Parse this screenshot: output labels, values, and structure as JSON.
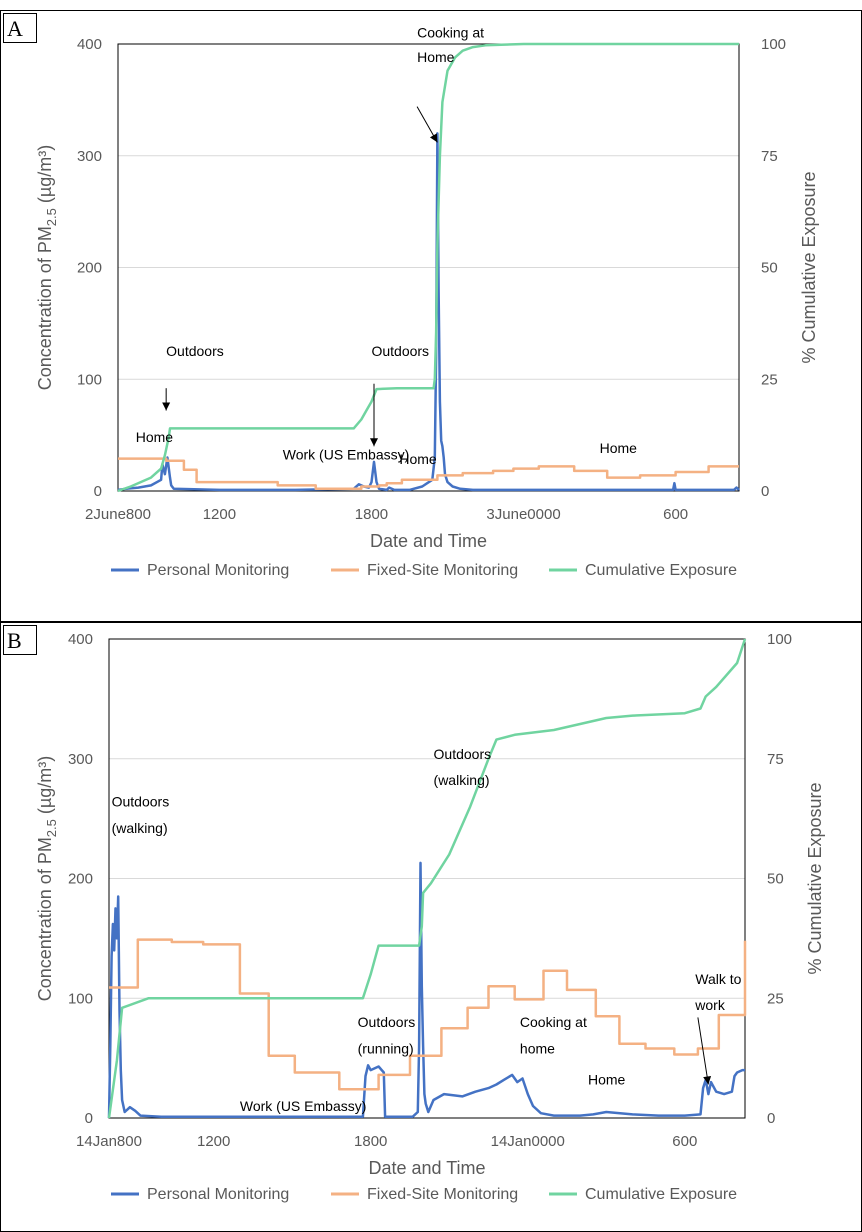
{
  "panels": [
    {
      "label": "A",
      "axes": {
        "xlabel": "Date and Time",
        "ylabel": "Concentration of PM2.5 (µg/m³)",
        "y2label": "% Cumulative Exposure",
        "ylim": [
          0,
          400
        ],
        "y2lim": [
          0,
          100
        ],
        "xlim": [
          8,
          32.5
        ],
        "yticks": [
          "0",
          "100",
          "200",
          "300",
          "400"
        ],
        "y2ticks": [
          "0",
          "25",
          "50",
          "75",
          "100"
        ],
        "xticks": [
          {
            "x": 8,
            "label": "2June800"
          },
          {
            "x": 12,
            "label": "1200"
          },
          {
            "x": 18,
            "label": "1800"
          },
          {
            "x": 24,
            "label": "3June0000"
          },
          {
            "x": 30,
            "label": "600"
          }
        ]
      },
      "annotations": [
        {
          "text": "Home",
          "x": 8.7,
          "y": 44
        },
        {
          "text": "Outdoors",
          "x": 9.9,
          "y": 121
        },
        {
          "text": "Work (US Embassy)",
          "x": 14.5,
          "y": 28
        },
        {
          "text": "Outdoors",
          "x": 18.0,
          "y": 121
        },
        {
          "text": "Home",
          "x": 19.1,
          "y": 24
        },
        {
          "text": "Cooking at",
          "x": 19.8,
          "y": 406
        },
        {
          "text": "Home",
          "x": 19.8,
          "y": 384
        },
        {
          "text": "Home",
          "x": 27.0,
          "y": 34
        }
      ],
      "arrows": [
        {
          "from": [
            9.9,
            92
          ],
          "to": [
            9.9,
            72
          ]
        },
        {
          "from": [
            18.1,
            96
          ],
          "to": [
            18.1,
            40
          ]
        },
        {
          "from": [
            19.8,
            344
          ],
          "to": [
            20.6,
            312
          ]
        }
      ],
      "chart_data": {
        "type": "line",
        "xlabel": "Date and Time",
        "ylabel": "Concentration of PM2.5 (µg/m³)",
        "y2label": "% Cumulative Exposure",
        "ylim": [
          0,
          400
        ],
        "y2lim": [
          0,
          100
        ],
        "series": [
          {
            "name": "Personal Monitoring",
            "axis": "left",
            "color": "#4472C4",
            "x": [
              8,
              8.3,
              8.8,
              9.3,
              9.7,
              9.75,
              9.85,
              9.95,
              10.05,
              10.1,
              10.2,
              12,
              15,
              17.3,
              17.5,
              17.7,
              17.9,
              18.0,
              18.1,
              18.2,
              18.3,
              18.6,
              18.7,
              18.9,
              19.5,
              20.0,
              20.4,
              20.5,
              20.55,
              20.6,
              20.65,
              20.7,
              20.75,
              20.8,
              20.85,
              20.9,
              21.0,
              21.2,
              21.5,
              22,
              23,
              26,
              29.9,
              29.95,
              30.0,
              30.1,
              32.3,
              32.4,
              32.5
            ],
            "y": [
              1,
              2,
              3,
              5,
              10,
              24,
              15,
              30,
              12,
              5,
              2,
              1,
              1,
              2,
              6,
              4,
              3,
              8,
              26,
              8,
              2,
              1,
              3,
              1,
              1,
              4,
              10,
              30,
              120,
              320,
              180,
              80,
              45,
              40,
              30,
              15,
              8,
              4,
              2,
              1,
              1,
              1,
              1,
              7,
              1,
              1,
              1,
              3,
              1
            ]
          },
          {
            "name": "Fixed-Site Monitoring",
            "axis": "left",
            "color": "#F4B183",
            "x": [
              8,
              9.9,
              9.9,
              10.6,
              10.6,
              11.1,
              11.1,
              14.3,
              14.3,
              15.8,
              15.8,
              17.6,
              17.6,
              18.3,
              18.3,
              18.6,
              18.6,
              19.2,
              19.2,
              20.6,
              20.6,
              21.6,
              21.6,
              22.8,
              22.8,
              23.6,
              23.6,
              24.6,
              24.6,
              26.0,
              26.0,
              27.3,
              27.3,
              28.6,
              28.6,
              30.0,
              30.0,
              31.3,
              31.3,
              32.5
            ],
            "y": [
              29,
              29,
              27,
              27,
              19,
              19,
              8,
              8,
              5,
              5,
              2,
              2,
              4,
              4,
              5,
              5,
              7,
              7,
              10,
              10,
              14,
              14,
              16,
              16,
              18,
              18,
              20,
              20,
              22,
              22,
              18,
              18,
              12,
              12,
              14,
              14,
              17,
              17,
              22,
              22
            ]
          },
          {
            "name": "Cumulative Exposure",
            "axis": "right",
            "color": "#70D4A0",
            "x": [
              8,
              8.5,
              9.3,
              9.7,
              9.85,
              10.0,
              10.05,
              12,
              15,
              17.3,
              17.6,
              17.8,
              18.0,
              18.2,
              19.0,
              19.8,
              20.45,
              20.5,
              20.55,
              20.6,
              20.7,
              20.8,
              21.0,
              21.3,
              21.6,
              22,
              22.5,
              24,
              28,
              32.5
            ],
            "y": [
              0,
              1,
              3,
              5,
              8,
              12,
              14,
              14,
              14,
              14,
              16,
              18,
              20,
              22.8,
              23,
              23,
              23,
              25,
              35,
              55,
              75,
              87,
              94,
              97,
              98.5,
              99.3,
              99.7,
              100,
              100,
              100
            ]
          }
        ]
      }
    },
    {
      "label": "B",
      "axes": {
        "xlabel": "Date and Time",
        "ylabel": "Concentration of PM2.5 (µg/m³)",
        "y2label": "% Cumulative Exposure",
        "ylim": [
          0,
          400
        ],
        "y2lim": [
          0,
          100
        ],
        "xlim": [
          8,
          32.3
        ],
        "yticks": [
          "0",
          "100",
          "200",
          "300",
          "400"
        ],
        "y2ticks": [
          "0",
          "25",
          "50",
          "75",
          "100"
        ],
        "xticks": [
          {
            "x": 8,
            "label": "14Jan800"
          },
          {
            "x": 12,
            "label": "1200"
          },
          {
            "x": 18,
            "label": "1800"
          },
          {
            "x": 24,
            "label": "14Jan0000"
          },
          {
            "x": 30,
            "label": "600"
          }
        ]
      },
      "annotations": [
        {
          "text": "Outdoors",
          "x": 8.1,
          "y": 260
        },
        {
          "text": "(walking)",
          "x": 8.1,
          "y": 238
        },
        {
          "text": "Work (US Embassy)",
          "x": 13.0,
          "y": 6
        },
        {
          "text": "Outdoors",
          "x": 17.5,
          "y": 76
        },
        {
          "text": "(running)",
          "x": 17.5,
          "y": 54
        },
        {
          "text": "Outdoors",
          "x": 20.4,
          "y": 300
        },
        {
          "text": "(walking)",
          "x": 20.4,
          "y": 278
        },
        {
          "text": "Cooking at",
          "x": 23.7,
          "y": 76
        },
        {
          "text": "home",
          "x": 23.7,
          "y": 54
        },
        {
          "text": "Home",
          "x": 26.3,
          "y": 28
        },
        {
          "text": "Walk to",
          "x": 30.4,
          "y": 112
        },
        {
          "text": "work",
          "x": 30.4,
          "y": 90
        }
      ],
      "arrows": [
        {
          "from": [
            30.5,
            84
          ],
          "to": [
            30.9,
            28
          ]
        }
      ],
      "chart_data": {
        "type": "line",
        "xlabel": "Date and Time",
        "ylabel": "Concentration of PM2.5 (µg/m³)",
        "y2label": "% Cumulative Exposure",
        "ylim": [
          0,
          400
        ],
        "y2lim": [
          0,
          100
        ],
        "series": [
          {
            "name": "Personal Monitoring",
            "axis": "left",
            "color": "#4472C4",
            "x": [
              8,
              8.05,
              8.1,
              8.15,
              8.2,
              8.25,
              8.3,
              8.35,
              8.4,
              8.45,
              8.5,
              8.6,
              8.8,
              9.0,
              9.2,
              10,
              14,
              17.7,
              17.8,
              17.9,
              18.0,
              18.3,
              18.5,
              18.55,
              19.6,
              19.8,
              19.85,
              19.9,
              19.95,
              20.0,
              20.05,
              20.1,
              20.2,
              20.4,
              20.8,
              21.5,
              22.0,
              22.5,
              22.8,
              23.1,
              23.4,
              23.6,
              23.8,
              24.0,
              24.2,
              24.5,
              25,
              26,
              26.5,
              27,
              28,
              29,
              30,
              30.6,
              30.7,
              30.8,
              30.9,
              31.0,
              31.2,
              31.5,
              31.8,
              31.9,
              32.0,
              32.2,
              32.3
            ],
            "y": [
              0,
              60,
              135,
              162,
              140,
              175,
              150,
              185,
              90,
              40,
              15,
              5,
              9,
              6,
              2,
              1,
              1,
              1,
              35,
              44,
              40,
              43,
              38,
              1,
              1,
              5,
              60,
              213,
              110,
              60,
              20,
              12,
              5,
              15,
              20,
              18,
              22,
              25,
              28,
              32,
              36,
              30,
              33,
              20,
              10,
              4,
              2,
              2,
              3,
              5,
              3,
              2,
              2,
              3,
              25,
              32,
              20,
              30,
              22,
              20,
              22,
              35,
              38,
              40,
              40
            ]
          },
          {
            "name": "Fixed-Site Monitoring",
            "axis": "left",
            "color": "#F4B183",
            "x": [
              8,
              9.1,
              9.1,
              10.4,
              10.4,
              11.6,
              11.6,
              13.0,
              13.0,
              14.1,
              14.1,
              15.1,
              15.1,
              16.8,
              16.8,
              18.3,
              18.3,
              19.5,
              19.5,
              20.7,
              20.7,
              21.7,
              21.7,
              22.5,
              22.5,
              23.5,
              23.5,
              24.6,
              24.6,
              25.5,
              25.5,
              26.6,
              26.6,
              27.5,
              27.5,
              28.5,
              28.5,
              29.6,
              29.6,
              30.5,
              30.5,
              31.3,
              31.3,
              32.3,
              32.3
            ],
            "y": [
              109,
              109,
              149,
              149,
              147,
              147,
              145,
              145,
              104,
              104,
              52,
              52,
              38,
              38,
              24,
              24,
              36,
              36,
              52,
              52,
              75,
              75,
              92,
              92,
              110,
              110,
              99,
              99,
              123,
              123,
              107,
              107,
              85,
              85,
              62,
              62,
              58,
              58,
              53,
              53,
              58,
              58,
              86,
              86,
              148
            ]
          },
          {
            "name": "Cumulative Exposure",
            "axis": "right",
            "color": "#70D4A0",
            "x": [
              8,
              8.3,
              8.5,
              9.5,
              12,
              15,
              17.3,
              17.7,
              18.0,
              18.3,
              19.5,
              19.85,
              19.95,
              20.0,
              20.3,
              21,
              21.8,
              22.5,
              22.8,
              23.5,
              25,
              27,
              28,
              30,
              30.6,
              30.8,
              31.2,
              32.0,
              32.3
            ],
            "y": [
              0,
              12,
              23,
              25,
              25,
              25,
              25,
              25,
              30,
              36,
              36,
              36,
              40,
              47,
              49,
              55,
              65,
              75,
              79,
              80,
              81,
              83.5,
              84,
              84.5,
              85.5,
              88,
              90,
              95,
              100
            ]
          }
        ]
      }
    }
  ],
  "legend": [
    {
      "label": "Personal Monitoring",
      "color": "#4472C4"
    },
    {
      "label": "Fixed-Site Monitoring",
      "color": "#F4B183"
    },
    {
      "label": "Cumulative Exposure",
      "color": "#70D4A0"
    }
  ]
}
